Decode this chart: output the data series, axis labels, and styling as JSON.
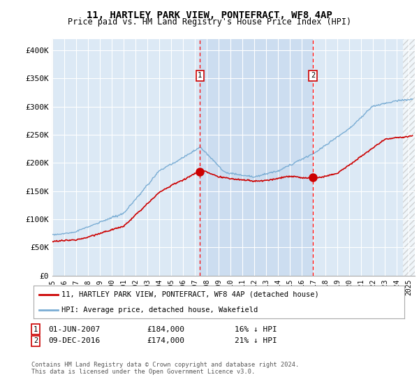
{
  "title": "11, HARTLEY PARK VIEW, PONTEFRACT, WF8 4AP",
  "subtitle": "Price paid vs. HM Land Registry's House Price Index (HPI)",
  "legend_label_red": "11, HARTLEY PARK VIEW, PONTEFRACT, WF8 4AP (detached house)",
  "legend_label_blue": "HPI: Average price, detached house, Wakefield",
  "transaction1": {
    "label": "1",
    "date": "01-JUN-2007",
    "price": "£184,000",
    "diff": "16% ↓ HPI"
  },
  "transaction2": {
    "label": "2",
    "date": "09-DEC-2016",
    "price": "£174,000",
    "diff": "21% ↓ HPI"
  },
  "footnote": "Contains HM Land Registry data © Crown copyright and database right 2024.\nThis data is licensed under the Open Government Licence v3.0.",
  "background_color": "#dce9f5",
  "highlight_color": "#ccddf0",
  "red_color": "#cc0000",
  "blue_color": "#7aadd4",
  "ylim": [
    0,
    420000
  ],
  "yticks": [
    0,
    50000,
    100000,
    150000,
    200000,
    250000,
    300000,
    350000,
    400000
  ],
  "ytick_labels": [
    "£0",
    "£50K",
    "£100K",
    "£150K",
    "£200K",
    "£250K",
    "£300K",
    "£350K",
    "£400K"
  ],
  "vline1_x": 2007.42,
  "vline2_x": 2016.92,
  "sale1_y": 184000,
  "sale2_y": 174000,
  "xmin": 1995,
  "xmax": 2025.5
}
